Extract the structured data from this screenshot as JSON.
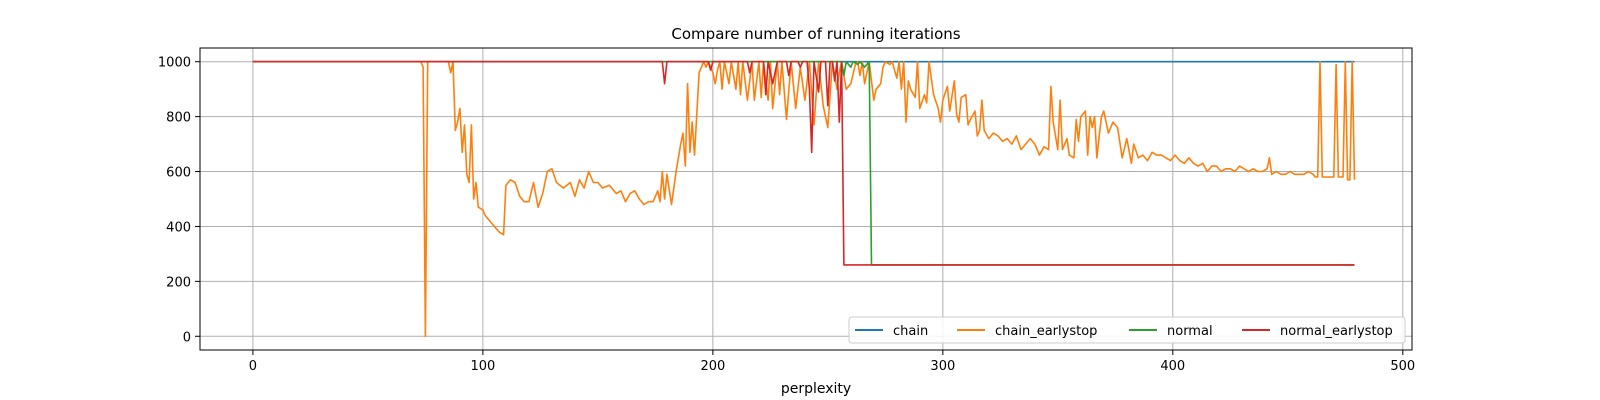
{
  "chart_data": {
    "type": "line",
    "title": "Compare number of running iterations",
    "xlabel": "perplexity",
    "ylabel": "",
    "xlim": [
      -23,
      504
    ],
    "ylim": [
      -50,
      1050
    ],
    "xticks": [
      0,
      100,
      200,
      300,
      400,
      500
    ],
    "yticks": [
      0,
      200,
      400,
      600,
      800,
      1000
    ],
    "grid": true,
    "legend": {
      "placement": "lower-right",
      "columns": 4
    },
    "series": [
      {
        "name": "chain",
        "color": "#1f77b4",
        "points": [
          [
            0,
            1000
          ],
          [
            479,
            1000
          ]
        ]
      },
      {
        "name": "chain_earlystop",
        "color": "#ff7f0e",
        "points": [
          [
            0,
            1000
          ],
          [
            73,
            1000
          ],
          [
            74,
            980
          ],
          [
            75,
            0
          ],
          [
            76,
            1000
          ],
          [
            85,
            1000
          ],
          [
            86,
            960
          ],
          [
            87,
            1000
          ],
          [
            88,
            750
          ],
          [
            89,
            780
          ],
          [
            90,
            830
          ],
          [
            91,
            670
          ],
          [
            92,
            770
          ],
          [
            93,
            590
          ],
          [
            94,
            560
          ],
          [
            95,
            770
          ],
          [
            96,
            500
          ],
          [
            97,
            560
          ],
          [
            98,
            470
          ],
          [
            100,
            460
          ],
          [
            101,
            440
          ],
          [
            103,
            420
          ],
          [
            105,
            400
          ],
          [
            107,
            380
          ],
          [
            109,
            370
          ],
          [
            110,
            550
          ],
          [
            112,
            570
          ],
          [
            114,
            560
          ],
          [
            116,
            510
          ],
          [
            118,
            490
          ],
          [
            120,
            490
          ],
          [
            122,
            560
          ],
          [
            124,
            470
          ],
          [
            126,
            520
          ],
          [
            128,
            600
          ],
          [
            130,
            610
          ],
          [
            132,
            560
          ],
          [
            135,
            540
          ],
          [
            138,
            560
          ],
          [
            140,
            510
          ],
          [
            142,
            570
          ],
          [
            144,
            540
          ],
          [
            146,
            600
          ],
          [
            148,
            560
          ],
          [
            150,
            560
          ],
          [
            152,
            540
          ],
          [
            155,
            550
          ],
          [
            158,
            520
          ],
          [
            160,
            530
          ],
          [
            162,
            490
          ],
          [
            164,
            520
          ],
          [
            166,
            530
          ],
          [
            168,
            500
          ],
          [
            170,
            480
          ],
          [
            172,
            490
          ],
          [
            174,
            490
          ],
          [
            176,
            530
          ],
          [
            177,
            490
          ],
          [
            178,
            600
          ],
          [
            179,
            500
          ],
          [
            180,
            590
          ],
          [
            182,
            480
          ],
          [
            184,
            600
          ],
          [
            186,
            700
          ],
          [
            187,
            740
          ],
          [
            188,
            620
          ],
          [
            189,
            920
          ],
          [
            190,
            670
          ],
          [
            191,
            780
          ],
          [
            192,
            660
          ],
          [
            194,
            960
          ],
          [
            196,
            1000
          ],
          [
            197,
            980
          ],
          [
            198,
            1000
          ],
          [
            200,
            960
          ],
          [
            201,
            920
          ],
          [
            202,
            970
          ],
          [
            203,
            1000
          ],
          [
            204,
            900
          ],
          [
            205,
            1000
          ],
          [
            207,
            920
          ],
          [
            208,
            1000
          ],
          [
            210,
            900
          ],
          [
            211,
            1000
          ],
          [
            212,
            880
          ],
          [
            213,
            1000
          ],
          [
            215,
            860
          ],
          [
            217,
            1000
          ],
          [
            218,
            860
          ],
          [
            220,
            1000
          ],
          [
            221,
            870
          ],
          [
            222,
            1000
          ],
          [
            223,
            930
          ],
          [
            224,
            860
          ],
          [
            225,
            1000
          ],
          [
            226,
            830
          ],
          [
            228,
            1000
          ],
          [
            229,
            880
          ],
          [
            230,
            1000
          ],
          [
            232,
            790
          ],
          [
            234,
            1000
          ],
          [
            236,
            830
          ],
          [
            238,
            980
          ],
          [
            240,
            860
          ],
          [
            242,
            1000
          ],
          [
            244,
            770
          ],
          [
            246,
            1000
          ],
          [
            248,
            840
          ],
          [
            250,
            760
          ],
          [
            252,
            1000
          ],
          [
            254,
            900
          ],
          [
            255,
            960
          ],
          [
            256,
            1000
          ],
          [
            258,
            900
          ],
          [
            260,
            920
          ],
          [
            262,
            990
          ],
          [
            263,
            1000
          ],
          [
            264,
            950
          ],
          [
            265,
            1000
          ],
          [
            266,
            920
          ],
          [
            268,
            1000
          ],
          [
            270,
            860
          ],
          [
            271,
            900
          ],
          [
            273,
            920
          ],
          [
            274,
            980
          ],
          [
            275,
            1000
          ],
          [
            277,
            990
          ],
          [
            278,
            1000
          ],
          [
            280,
            940
          ],
          [
            281,
            1000
          ],
          [
            282,
            900
          ],
          [
            283,
            1000
          ],
          [
            284,
            780
          ],
          [
            285,
            930
          ],
          [
            286,
            900
          ],
          [
            288,
            870
          ],
          [
            289,
            1000
          ],
          [
            290,
            830
          ],
          [
            292,
            880
          ],
          [
            293,
            850
          ],
          [
            294,
            1000
          ],
          [
            296,
            880
          ],
          [
            298,
            830
          ],
          [
            299,
            780
          ],
          [
            300,
            860
          ],
          [
            302,
            910
          ],
          [
            303,
            820
          ],
          [
            305,
            930
          ],
          [
            306,
            810
          ],
          [
            307,
            780
          ],
          [
            308,
            870
          ],
          [
            310,
            880
          ],
          [
            311,
            770
          ],
          [
            312,
            790
          ],
          [
            314,
            820
          ],
          [
            315,
            730
          ],
          [
            316,
            750
          ],
          [
            317,
            860
          ],
          [
            318,
            750
          ],
          [
            320,
            720
          ],
          [
            322,
            740
          ],
          [
            324,
            730
          ],
          [
            326,
            710
          ],
          [
            328,
            720
          ],
          [
            330,
            700
          ],
          [
            332,
            730
          ],
          [
            334,
            680
          ],
          [
            336,
            700
          ],
          [
            338,
            720
          ],
          [
            340,
            700
          ],
          [
            342,
            660
          ],
          [
            344,
            690
          ],
          [
            346,
            680
          ],
          [
            347,
            910
          ],
          [
            348,
            780
          ],
          [
            350,
            680
          ],
          [
            351,
            860
          ],
          [
            352,
            680
          ],
          [
            354,
            720
          ],
          [
            355,
            660
          ],
          [
            357,
            650
          ],
          [
            358,
            790
          ],
          [
            359,
            710
          ],
          [
            360,
            800
          ],
          [
            362,
            820
          ],
          [
            363,
            660
          ],
          [
            364,
            800
          ],
          [
            365,
            760
          ],
          [
            366,
            800
          ],
          [
            367,
            650
          ],
          [
            368,
            730
          ],
          [
            369,
            800
          ],
          [
            370,
            820
          ],
          [
            372,
            740
          ],
          [
            374,
            780
          ],
          [
            376,
            760
          ],
          [
            378,
            650
          ],
          [
            380,
            720
          ],
          [
            382,
            630
          ],
          [
            383,
            700
          ],
          [
            385,
            650
          ],
          [
            387,
            660
          ],
          [
            389,
            640
          ],
          [
            391,
            670
          ],
          [
            393,
            660
          ],
          [
            395,
            660
          ],
          [
            397,
            650
          ],
          [
            399,
            640
          ],
          [
            401,
            660
          ],
          [
            403,
            640
          ],
          [
            405,
            630
          ],
          [
            407,
            650
          ],
          [
            409,
            630
          ],
          [
            411,
            620
          ],
          [
            413,
            630
          ],
          [
            415,
            600
          ],
          [
            417,
            620
          ],
          [
            419,
            620
          ],
          [
            421,
            600
          ],
          [
            423,
            610
          ],
          [
            425,
            610
          ],
          [
            427,
            600
          ],
          [
            429,
            620
          ],
          [
            431,
            610
          ],
          [
            433,
            600
          ],
          [
            435,
            610
          ],
          [
            437,
            600
          ],
          [
            439,
            600
          ],
          [
            441,
            610
          ],
          [
            442,
            650
          ],
          [
            443,
            590
          ],
          [
            445,
            600
          ],
          [
            447,
            590
          ],
          [
            449,
            590
          ],
          [
            451,
            600
          ],
          [
            453,
            590
          ],
          [
            455,
            590
          ],
          [
            457,
            590
          ],
          [
            459,
            600
          ],
          [
            461,
            590
          ],
          [
            462,
            580
          ],
          [
            463,
            580
          ],
          [
            464,
            1000
          ],
          [
            465,
            580
          ],
          [
            470,
            580
          ],
          [
            471,
            990
          ],
          [
            472,
            580
          ],
          [
            474,
            580
          ],
          [
            475,
            1000
          ],
          [
            476,
            570
          ],
          [
            477,
            570
          ],
          [
            478,
            1000
          ],
          [
            479,
            570
          ]
        ]
      },
      {
        "name": "normal",
        "color": "#2ca02c",
        "points": [
          [
            0,
            1000
          ],
          [
            256,
            1000
          ],
          [
            257,
            950
          ],
          [
            258,
            1000
          ],
          [
            260,
            980
          ],
          [
            261,
            1000
          ],
          [
            263,
            990
          ],
          [
            264,
            1000
          ],
          [
            266,
            980
          ],
          [
            268,
            1000
          ],
          [
            269,
            260
          ],
          [
            479,
            260
          ]
        ]
      },
      {
        "name": "normal_earlystop",
        "color": "#d62728",
        "points": [
          [
            0,
            1000
          ],
          [
            178,
            1000
          ],
          [
            179,
            920
          ],
          [
            180,
            1000
          ],
          [
            198,
            1000
          ],
          [
            199,
            970
          ],
          [
            200,
            1000
          ],
          [
            215,
            1000
          ],
          [
            216,
            960
          ],
          [
            217,
            1000
          ],
          [
            222,
            1000
          ],
          [
            223,
            880
          ],
          [
            224,
            1000
          ],
          [
            226,
            920
          ],
          [
            228,
            1000
          ],
          [
            232,
            1000
          ],
          [
            233,
            950
          ],
          [
            234,
            1000
          ],
          [
            237,
            1000
          ],
          [
            238,
            980
          ],
          [
            239,
            1000
          ],
          [
            241,
            1000
          ],
          [
            242,
            900
          ],
          [
            243,
            670
          ],
          [
            244,
            1000
          ],
          [
            246,
            890
          ],
          [
            247,
            1000
          ],
          [
            249,
            1000
          ],
          [
            250,
            840
          ],
          [
            251,
            1000
          ],
          [
            252,
            1000
          ],
          [
            253,
            930
          ],
          [
            254,
            1000
          ],
          [
            255,
            780
          ],
          [
            256,
            1000
          ],
          [
            257,
            260
          ],
          [
            479,
            260
          ]
        ]
      }
    ]
  }
}
